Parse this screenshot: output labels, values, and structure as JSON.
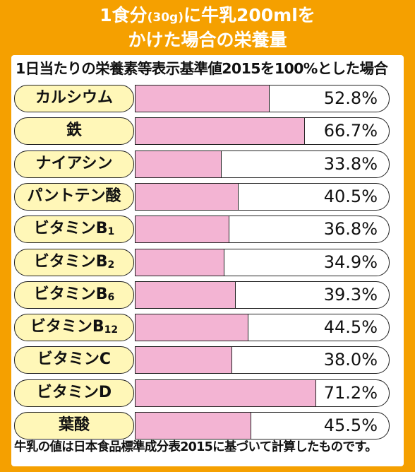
{
  "header": {
    "title_line1_a": "1食分",
    "title_line1_b": "(30g)",
    "title_line1_c": "に牛乳200mlを",
    "title_line2": "かけた場合の栄養量"
  },
  "subtitle": "1日当たりの栄養素等表示基準値2015を100%とした場合",
  "footnote": "牛乳の値は日本食品標準成分表2015に基づいて計算したものです。",
  "colors": {
    "background": "#f5a000",
    "bar": "#f3b4d3",
    "label_pill": "#fff7b8"
  },
  "chart_data": {
    "type": "bar",
    "orientation": "horizontal",
    "title": "1日当たりの栄養素等表示基準値2015を100%とした場合",
    "xlim": [
      0,
      100
    ],
    "grid": false,
    "categories": [
      {
        "name": "カルシウム",
        "sub": ""
      },
      {
        "name": "鉄",
        "sub": ""
      },
      {
        "name": "ナイアシン",
        "sub": ""
      },
      {
        "name": "パントテン酸",
        "sub": ""
      },
      {
        "name": "ビタミンB",
        "sub": "1"
      },
      {
        "name": "ビタミンB",
        "sub": "2"
      },
      {
        "name": "ビタミンB",
        "sub": "6"
      },
      {
        "name": "ビタミンB",
        "sub": "12"
      },
      {
        "name": "ビタミンC",
        "sub": ""
      },
      {
        "name": "ビタミンD",
        "sub": ""
      },
      {
        "name": "葉酸",
        "sub": ""
      }
    ],
    "values": [
      52.8,
      66.7,
      33.8,
      40.5,
      36.8,
      34.9,
      39.3,
      44.5,
      38.0,
      71.2,
      45.5
    ],
    "value_labels": [
      "52.8%",
      "66.7%",
      "33.8%",
      "40.5%",
      "36.8%",
      "34.9%",
      "39.3%",
      "44.5%",
      "38.0%",
      "71.2%",
      "45.5%"
    ]
  }
}
